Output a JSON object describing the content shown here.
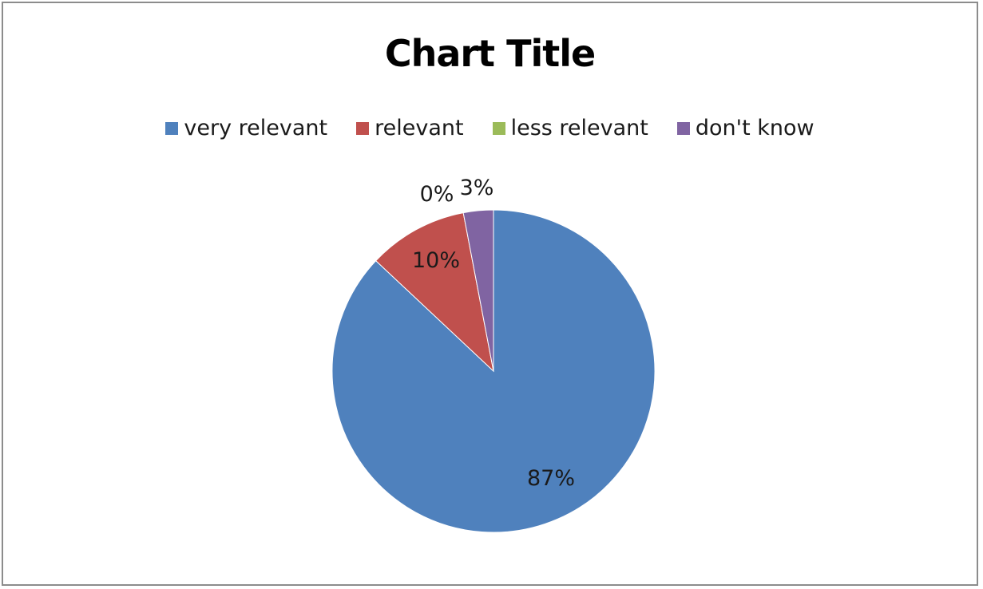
{
  "chart_data": {
    "type": "pie",
    "title": "Chart Title",
    "legend_position": "top",
    "categories": [
      "very relevant",
      "relevant",
      "less relevant",
      "don't know"
    ],
    "values": [
      87,
      10,
      0,
      3
    ],
    "labels": [
      "87%",
      "10%",
      "0%",
      "3%"
    ],
    "colors": [
      "#4F81BD",
      "#C0504D",
      "#9BBB59",
      "#8064A2"
    ]
  }
}
